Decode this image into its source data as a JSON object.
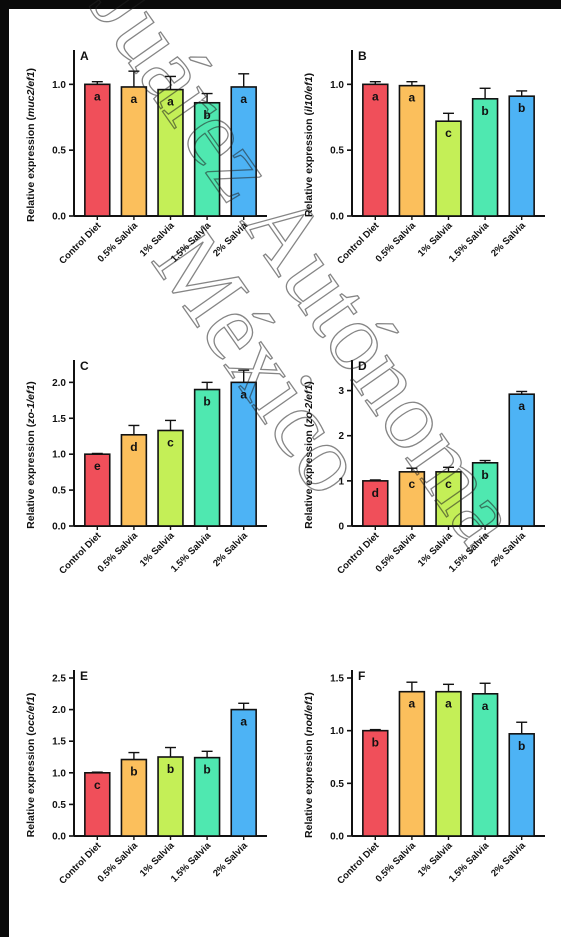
{
  "chart_data": [
    {
      "type": "bar",
      "panel_letter": "A",
      "ylabel_prefix": "Relative expression (",
      "ylabel_gene": "muc2/ef1",
      "ylabel_suffix": ")",
      "categories": [
        "Control Diet",
        "0.5% Salvia",
        "1% Salvia",
        "1.5% Salvia",
        "2% Salvia"
      ],
      "values": [
        1.0,
        0.98,
        0.96,
        0.86,
        0.98
      ],
      "errors": [
        0.02,
        0.12,
        0.1,
        0.07,
        0.1
      ],
      "significance": [
        "a",
        "a",
        "a",
        "b",
        "a"
      ],
      "ylim": [
        0,
        1.2
      ],
      "yticks": [
        "0.0",
        "0.5",
        "1.0"
      ]
    },
    {
      "type": "bar",
      "panel_letter": "B",
      "ylabel_prefix": "Relative expression (",
      "ylabel_gene": "il10/ef1",
      "ylabel_suffix": ")",
      "categories": [
        "Control Diet",
        "0.5% Salvia",
        "1% Salvia",
        "1.5% Salvia",
        "2% Salvia"
      ],
      "values": [
        1.0,
        0.99,
        0.72,
        0.89,
        0.91
      ],
      "errors": [
        0.02,
        0.03,
        0.06,
        0.08,
        0.04
      ],
      "significance": [
        "a",
        "a",
        "c",
        "b",
        "b"
      ],
      "ylim": [
        0,
        1.2
      ],
      "yticks": [
        "0.0",
        "0.5",
        "1.0"
      ]
    },
    {
      "type": "bar",
      "panel_letter": "C",
      "ylabel_prefix": "Relative expression (",
      "ylabel_gene": "zo-1/ef1",
      "ylabel_suffix": ")",
      "categories": [
        "Control Diet",
        "0.5% Salvia",
        "1% Salvia",
        "1.5% Salvia",
        "2% Salvia"
      ],
      "values": [
        1.0,
        1.27,
        1.33,
        1.9,
        2.0
      ],
      "errors": [
        0.01,
        0.13,
        0.14,
        0.1,
        0.17
      ],
      "significance": [
        "e",
        "d",
        "c",
        "b",
        "a"
      ],
      "ylim": [
        0,
        2.2
      ],
      "yticks": [
        "0.0",
        "0.5",
        "1.0",
        "1.5",
        "2.0"
      ]
    },
    {
      "type": "bar",
      "panel_letter": "D",
      "ylabel_prefix": "Relative expression (",
      "ylabel_gene": "zo-2/ef1",
      "ylabel_suffix": ")",
      "categories": [
        "Control Diet",
        "0.5% Salvia",
        "1% Salvia",
        "1.5% Salvia",
        "2% Salvia"
      ],
      "values": [
        1.0,
        1.2,
        1.2,
        1.4,
        2.92
      ],
      "errors": [
        0.02,
        0.08,
        0.1,
        0.05,
        0.06
      ],
      "significance": [
        "d",
        "c",
        "c",
        "b",
        "a"
      ],
      "ylim": [
        0,
        3.5
      ],
      "yticks": [
        "0",
        "1",
        "2",
        "3"
      ]
    },
    {
      "type": "bar",
      "panel_letter": "E",
      "ylabel_prefix": "Relative expression (",
      "ylabel_gene": "occ/ef1",
      "ylabel_suffix": ")",
      "categories": [
        "Control Diet",
        "0.5% Salvia",
        "1% Salvia",
        "1.5% Salvia",
        "2% Salvia"
      ],
      "values": [
        1.0,
        1.21,
        1.25,
        1.24,
        2.0
      ],
      "errors": [
        0.01,
        0.11,
        0.15,
        0.1,
        0.1
      ],
      "significance": [
        "c",
        "b",
        "b",
        "b",
        "a"
      ],
      "ylim": [
        0,
        2.5
      ],
      "yticks": [
        "0.0",
        "0.5",
        "1.0",
        "1.5",
        "2.0",
        "2.5"
      ]
    },
    {
      "type": "bar",
      "panel_letter": "F",
      "ylabel_prefix": "Relative expression (",
      "ylabel_gene": "nod/ef1",
      "ylabel_suffix": ")",
      "categories": [
        "Control Diet",
        "0.5% Salvia",
        "1% Salvia",
        "1.5% Salvia",
        "2% Salvia"
      ],
      "values": [
        1.0,
        1.37,
        1.37,
        1.35,
        0.97
      ],
      "errors": [
        0.01,
        0.09,
        0.07,
        0.1,
        0.11
      ],
      "significance": [
        "b",
        "a",
        "a",
        "a",
        "b"
      ],
      "ylim": [
        0,
        1.5
      ],
      "yticks": [
        "0.0",
        "0.5",
        "1.0",
        "1.5"
      ]
    }
  ],
  "bar_colors": [
    "#f04f5a",
    "#fbbf5c",
    "#c4ef57",
    "#4fe8b0",
    "#4db3f5"
  ],
  "watermark": {
    "line1": "Juárez Autónoma",
    "line2": "México"
  }
}
